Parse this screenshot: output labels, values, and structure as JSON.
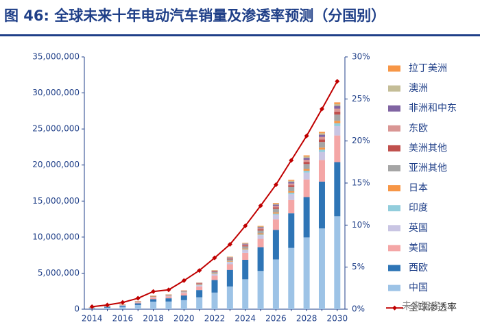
{
  "title": "图 46: 全球未来十年电动汽车销量及渗透率预测（分国别）",
  "watermark": "未来智库",
  "colors": {
    "title": "#1f3f88",
    "axis": "#1f3f88",
    "line": "#c00000",
    "series": {
      "中国": "#9dc3e6",
      "西欧": "#2e75b6",
      "美国": "#f4a6a6",
      "英国": "#c9c5e3",
      "印度": "#92cddc",
      "日本": "#f79646",
      "亚洲其他": "#a5a5a5",
      "美洲其他": "#c0504d",
      "东欧": "#d99694",
      "非洲和中东": "#8064a2",
      "澳洲": "#c4bd97",
      "拉丁美洲": "#f79646"
    }
  },
  "chart_data": {
    "type": "bar",
    "stacked": true,
    "title": "图 46: 全球未来十年电动汽车销量及渗透率预测（分国别）",
    "categories": [
      "2014",
      "2015",
      "2016",
      "2017",
      "2018",
      "2019",
      "2020",
      "2021",
      "2022",
      "2023",
      "2024",
      "2025",
      "2026",
      "2027",
      "2028",
      "2029",
      "2030"
    ],
    "x_tick_labels": [
      "2014",
      "2016",
      "2018",
      "2020",
      "2022",
      "2024",
      "2026",
      "2028",
      "2030"
    ],
    "ylim": [
      0,
      35000000
    ],
    "y_ticks": [
      0,
      5000000,
      10000000,
      15000000,
      20000000,
      25000000,
      30000000,
      35000000
    ],
    "y_tick_labels": [
      "0",
      "5,000,000",
      "10,000,000",
      "15,000,000",
      "20,000,000",
      "25,000,000",
      "30,000,000",
      "35,000,000"
    ],
    "y2lim": [
      0,
      30
    ],
    "y2_ticks": [
      0,
      5,
      10,
      15,
      20,
      25,
      30
    ],
    "y2_tick_labels": [
      "0%",
      "5%",
      "10%",
      "15%",
      "20%",
      "25%",
      "30%"
    ],
    "legend_position": "right",
    "legend_order": [
      "拉丁美洲",
      "澳洲",
      "非洲和中东",
      "东欧",
      "美洲其他",
      "亚洲其他",
      "日本",
      "印度",
      "英国",
      "美国",
      "西欧",
      "中国",
      "全球渗透率"
    ],
    "series": [
      {
        "name": "中国",
        "values": [
          80000,
          210000,
          340000,
          580000,
          1050000,
          1060000,
          1250000,
          1650000,
          2300000,
          3150000,
          4150000,
          5300000,
          6900000,
          8500000,
          9950000,
          11200000,
          12900000
        ]
      },
      {
        "name": "西欧",
        "values": [
          70000,
          110000,
          150000,
          230000,
          340000,
          450000,
          650000,
          1000000,
          1750000,
          2300000,
          2700000,
          3300000,
          4100000,
          4800000,
          5600000,
          6500000,
          7500000
        ]
      },
      {
        "name": "美国",
        "values": [
          40000,
          50000,
          60000,
          120000,
          250000,
          250000,
          330000,
          500000,
          600000,
          780000,
          960000,
          1150000,
          1450000,
          1850000,
          2450000,
          3000000,
          3700000
        ]
      },
      {
        "name": "英国",
        "values": [
          10000,
          20000,
          30000,
          40000,
          60000,
          80000,
          110000,
          160000,
          220000,
          300000,
          400000,
          500000,
          650000,
          800000,
          950000,
          1100000,
          1300000
        ]
      },
      {
        "name": "印度",
        "values": [
          1000,
          2000,
          3000,
          5000,
          8000,
          10000,
          15000,
          25000,
          40000,
          60000,
          90000,
          120000,
          160000,
          210000,
          260000,
          330000,
          400000
        ]
      },
      {
        "name": "日本",
        "values": [
          20000,
          25000,
          25000,
          50000,
          50000,
          40000,
          40000,
          50000,
          70000,
          90000,
          110000,
          140000,
          170000,
          200000,
          240000,
          290000,
          330000
        ]
      },
      {
        "name": "亚洲其他",
        "values": [
          10000,
          20000,
          30000,
          40000,
          50000,
          70000,
          90000,
          120000,
          170000,
          220000,
          300000,
          390000,
          490000,
          580000,
          680000,
          770000,
          870000
        ]
      },
      {
        "name": "美洲其他",
        "values": [
          5000,
          7000,
          10000,
          15000,
          20000,
          30000,
          40000,
          60000,
          80000,
          110000,
          140000,
          180000,
          220000,
          260000,
          310000,
          360000,
          420000
        ]
      },
      {
        "name": "东欧",
        "values": [
          3000,
          5000,
          7000,
          10000,
          15000,
          20000,
          30000,
          45000,
          60000,
          90000,
          120000,
          150000,
          190000,
          240000,
          290000,
          340000,
          400000
        ]
      },
      {
        "name": "非洲和中东",
        "values": [
          2000,
          3000,
          5000,
          8000,
          12000,
          15000,
          25000,
          35000,
          50000,
          70000,
          100000,
          130000,
          170000,
          210000,
          260000,
          310000,
          380000
        ]
      },
      {
        "name": "澳洲",
        "values": [
          2000,
          3000,
          4000,
          6000,
          10000,
          15000,
          20000,
          30000,
          45000,
          60000,
          80000,
          100000,
          120000,
          150000,
          180000,
          210000,
          250000
        ]
      },
      {
        "name": "拉丁美洲",
        "values": [
          1000,
          2000,
          3000,
          5000,
          7000,
          10000,
          15000,
          25000,
          35000,
          50000,
          70000,
          90000,
          110000,
          140000,
          170000,
          200000,
          240000
        ]
      }
    ],
    "line": {
      "name": "全球渗透率",
      "axis": "right",
      "values": [
        0.3,
        0.5,
        0.8,
        1.3,
        2.1,
        2.3,
        3.4,
        4.6,
        6.1,
        7.7,
        9.9,
        12.3,
        14.8,
        17.7,
        20.6,
        23.8,
        27.1
      ]
    }
  }
}
